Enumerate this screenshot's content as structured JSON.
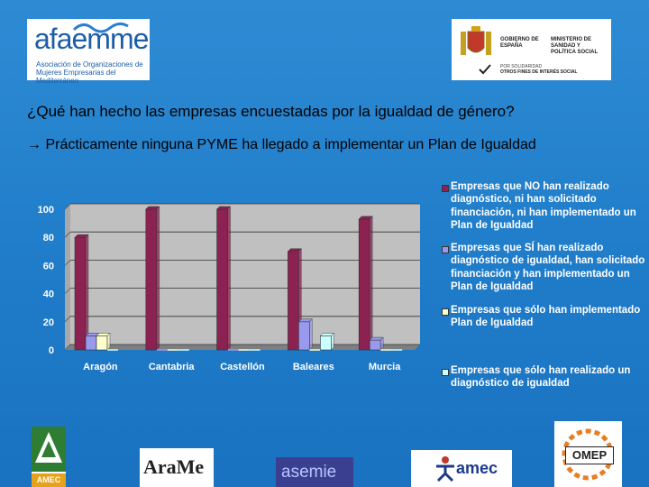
{
  "header": {
    "afaemme_logo": {
      "brand": "afaemme",
      "subtitle_line1": "Asociación de Organizaciones de",
      "subtitle_line2": "Mujeres Empresarias del Mediterráneo"
    },
    "ministerio_logo": {
      "left_text": "GOBIERNO DE ESPAÑA",
      "right_text": "MINISTERIO DE SANIDAD Y POLÍTICA SOCIAL",
      "foot_line1": "POR SOLIDARIDAD",
      "foot_line2": "OTROS FINES DE INTERÉS SOCIAL"
    }
  },
  "question": "¿Qué han hecho las empresas encuestadas por la igualdad de género?",
  "statement": " Prácticamente ninguna PYME ha llegado a implementar un Plan de Igualdad",
  "chart_data": {
    "type": "bar",
    "categories": [
      "Aragón",
      "Cantabria",
      "Castellón",
      "Baleares",
      "Murcia"
    ],
    "series": [
      {
        "name": "Empresas que NO han realizado diagnóstico, ni han solicitado financiación, ni han implementado un Plan de Igualdad",
        "color": "#8b2252",
        "values": [
          80,
          100,
          100,
          70,
          93
        ]
      },
      {
        "name": "Empresas que SÍ han realizado diagnóstico de igualdad, han solicitado financiación y han implementado un Plan de Igualdad",
        "color": "#9999ee",
        "values": [
          10,
          0,
          0,
          20,
          7
        ]
      },
      {
        "name": "Empresas que sólo han implementado Plan de Igualdad",
        "color": "#ffffcc",
        "values": [
          10,
          0,
          0,
          0,
          0
        ]
      },
      {
        "name": "Empresas que sólo han realizado un diagnóstico de igualdad",
        "color": "#ccffff",
        "values": [
          0,
          0,
          0,
          10,
          0
        ]
      }
    ],
    "yticks": [
      0,
      20,
      40,
      60,
      80,
      100
    ],
    "ylim": [
      0,
      100
    ],
    "grid": true,
    "legend": "right",
    "plot_bg": "#c0c0c0"
  },
  "footer_logos": {
    "amec_label": "AMEC",
    "arame_label": "AraMe",
    "asemie_label": "asemie",
    "amec2_label": "amec",
    "omep_label": "OMEP"
  }
}
